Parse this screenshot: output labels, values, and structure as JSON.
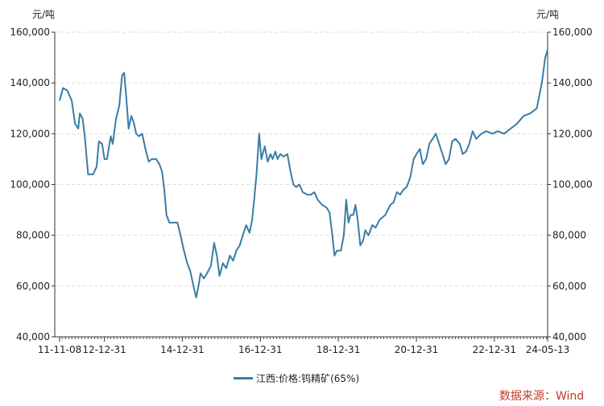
{
  "units": {
    "left": "元/吨",
    "right": "元/吨"
  },
  "legend": {
    "label": "江西:价格:钨精矿(65%)"
  },
  "source": "数据来源：Wind",
  "colors": {
    "series": "#3a7ca5",
    "source": "#c0392b",
    "grid": "#dddddd",
    "axis": "#333333"
  },
  "chart_data": {
    "type": "line",
    "title": "",
    "xlabel": "",
    "ylabel": "元/吨",
    "ylim": [
      40000,
      160000
    ],
    "grid": true,
    "legend_position": "bottom",
    "y_ticks": [
      40000,
      60000,
      80000,
      100000,
      120000,
      140000,
      160000
    ],
    "y_tick_labels": [
      "40,000",
      "60,000",
      "80,000",
      "100,000",
      "120,000",
      "140,000",
      "160,000"
    ],
    "x_tick_labels": [
      {
        "date": "2011-11-08",
        "label": "11-11-08"
      },
      {
        "date": "2012-12-31",
        "label": "12-12-31"
      },
      {
        "date": "2014-12-31",
        "label": "14-12-31"
      },
      {
        "date": "2016-12-31",
        "label": "16-12-31"
      },
      {
        "date": "2018-12-31",
        "label": "18-12-31"
      },
      {
        "date": "2020-12-31",
        "label": "20-12-31"
      },
      {
        "date": "2022-12-31",
        "label": "22-12-31"
      },
      {
        "date": "2024-05-13",
        "label": "24-05-13"
      }
    ],
    "series": [
      {
        "name": "江西:价格:钨精矿(65%)",
        "points": [
          [
            "2011-11-08",
            133000
          ],
          [
            "2011-12-10",
            138000
          ],
          [
            "2012-01-20",
            137000
          ],
          [
            "2012-03-01",
            133000
          ],
          [
            "2012-04-01",
            124000
          ],
          [
            "2012-05-01",
            122000
          ],
          [
            "2012-05-15",
            128000
          ],
          [
            "2012-06-10",
            126000
          ],
          [
            "2012-07-01",
            119000
          ],
          [
            "2012-08-01",
            104000
          ],
          [
            "2012-09-15",
            104000
          ],
          [
            "2012-10-20",
            107000
          ],
          [
            "2012-11-10",
            117000
          ],
          [
            "2012-12-10",
            116000
          ],
          [
            "2013-01-01",
            110000
          ],
          [
            "2013-01-25",
            110000
          ],
          [
            "2013-03-01",
            119000
          ],
          [
            "2013-03-20",
            116000
          ],
          [
            "2013-04-20",
            126000
          ],
          [
            "2013-05-20",
            131000
          ],
          [
            "2013-06-15",
            143000
          ],
          [
            "2013-07-05",
            144000
          ],
          [
            "2013-07-25",
            134000
          ],
          [
            "2013-08-15",
            122000
          ],
          [
            "2013-09-10",
            127000
          ],
          [
            "2013-10-05",
            124000
          ],
          [
            "2013-10-25",
            120000
          ],
          [
            "2013-11-20",
            119000
          ],
          [
            "2013-12-20",
            120000
          ],
          [
            "2014-01-20",
            114000
          ],
          [
            "2014-02-20",
            109000
          ],
          [
            "2014-03-20",
            110000
          ],
          [
            "2014-05-01",
            110000
          ],
          [
            "2014-05-30",
            108000
          ],
          [
            "2014-06-25",
            105000
          ],
          [
            "2014-07-15",
            98000
          ],
          [
            "2014-08-05",
            88000
          ],
          [
            "2014-09-01",
            85000
          ],
          [
            "2014-10-01",
            85000
          ],
          [
            "2014-11-15",
            85000
          ],
          [
            "2014-12-15",
            80000
          ],
          [
            "2015-01-15",
            74000
          ],
          [
            "2015-02-15",
            69000
          ],
          [
            "2015-03-15",
            66000
          ],
          [
            "2015-04-15",
            60000
          ],
          [
            "2015-05-10",
            55500
          ],
          [
            "2015-06-01",
            60000
          ],
          [
            "2015-06-20",
            65000
          ],
          [
            "2015-07-20",
            63000
          ],
          [
            "2015-08-20",
            65000
          ],
          [
            "2015-09-25",
            68000
          ],
          [
            "2015-10-25",
            77000
          ],
          [
            "2015-11-20",
            72000
          ],
          [
            "2015-12-15",
            64000
          ],
          [
            "2016-01-15",
            69000
          ],
          [
            "2016-02-15",
            67000
          ],
          [
            "2016-03-20",
            72000
          ],
          [
            "2016-04-20",
            70000
          ],
          [
            "2016-05-20",
            74000
          ],
          [
            "2016-06-20",
            76000
          ],
          [
            "2016-07-20",
            80000
          ],
          [
            "2016-08-20",
            84000
          ],
          [
            "2016-09-20",
            81000
          ],
          [
            "2016-10-15",
            86000
          ],
          [
            "2016-11-05",
            95000
          ],
          [
            "2016-11-25",
            104000
          ],
          [
            "2016-12-20",
            120000
          ],
          [
            "2017-01-10",
            110000
          ],
          [
            "2017-02-10",
            115000
          ],
          [
            "2017-03-10",
            109000
          ],
          [
            "2017-04-05",
            112000
          ],
          [
            "2017-04-25",
            110000
          ],
          [
            "2017-05-20",
            113000
          ],
          [
            "2017-06-10",
            110000
          ],
          [
            "2017-07-05",
            112000
          ],
          [
            "2017-08-05",
            111000
          ],
          [
            "2017-09-10",
            112000
          ],
          [
            "2017-10-10",
            105000
          ],
          [
            "2017-11-05",
            100000
          ],
          [
            "2017-12-01",
            99000
          ],
          [
            "2018-01-01",
            100000
          ],
          [
            "2018-02-01",
            97000
          ],
          [
            "2018-03-15",
            96000
          ],
          [
            "2018-04-20",
            96000
          ],
          [
            "2018-05-20",
            97000
          ],
          [
            "2018-06-20",
            94000
          ],
          [
            "2018-08-01",
            92000
          ],
          [
            "2018-09-10",
            91000
          ],
          [
            "2018-10-10",
            89000
          ],
          [
            "2018-11-05",
            80000
          ],
          [
            "2018-11-25",
            72000
          ],
          [
            "2018-12-20",
            74000
          ],
          [
            "2019-01-25",
            74000
          ],
          [
            "2019-02-20",
            80000
          ],
          [
            "2019-03-15",
            94000
          ],
          [
            "2019-04-05",
            85000
          ],
          [
            "2019-04-25",
            88000
          ],
          [
            "2019-05-20",
            88000
          ],
          [
            "2019-06-10",
            92000
          ],
          [
            "2019-07-01",
            86000
          ],
          [
            "2019-07-25",
            76000
          ],
          [
            "2019-08-20",
            78000
          ],
          [
            "2019-09-10",
            82000
          ],
          [
            "2019-10-10",
            80000
          ],
          [
            "2019-11-15",
            84000
          ],
          [
            "2019-12-15",
            83000
          ],
          [
            "2020-01-20",
            86000
          ],
          [
            "2020-03-15",
            88000
          ],
          [
            "2020-05-01",
            92000
          ],
          [
            "2020-06-01",
            93000
          ],
          [
            "2020-07-01",
            97000
          ],
          [
            "2020-08-01",
            96000
          ],
          [
            "2020-09-01",
            98000
          ],
          [
            "2020-10-01",
            99000
          ],
          [
            "2020-11-05",
            103000
          ],
          [
            "2020-12-05",
            110000
          ],
          [
            "2021-01-01",
            112000
          ],
          [
            "2021-02-01",
            114000
          ],
          [
            "2021-03-01",
            108000
          ],
          [
            "2021-04-01",
            110000
          ],
          [
            "2021-05-01",
            116000
          ],
          [
            "2021-06-01",
            118000
          ],
          [
            "2021-07-01",
            120000
          ],
          [
            "2021-08-01",
            116000
          ],
          [
            "2021-09-01",
            112000
          ],
          [
            "2021-10-01",
            108000
          ],
          [
            "2021-11-01",
            110000
          ],
          [
            "2021-12-01",
            117000
          ],
          [
            "2022-01-01",
            118000
          ],
          [
            "2022-02-10",
            116000
          ],
          [
            "2022-03-10",
            112000
          ],
          [
            "2022-04-10",
            113000
          ],
          [
            "2022-05-10",
            116000
          ],
          [
            "2022-06-10",
            121000
          ],
          [
            "2022-07-15",
            118000
          ],
          [
            "2022-09-01",
            120000
          ],
          [
            "2022-10-15",
            121000
          ],
          [
            "2022-12-15",
            120000
          ],
          [
            "2023-02-01",
            121000
          ],
          [
            "2023-04-01",
            120000
          ],
          [
            "2023-06-01",
            122000
          ],
          [
            "2023-08-01",
            124000
          ],
          [
            "2023-10-01",
            127000
          ],
          [
            "2023-12-01",
            128000
          ],
          [
            "2024-02-01",
            130000
          ],
          [
            "2024-03-20",
            140000
          ],
          [
            "2024-04-20",
            150000
          ],
          [
            "2024-05-13",
            153000
          ]
        ]
      }
    ]
  }
}
